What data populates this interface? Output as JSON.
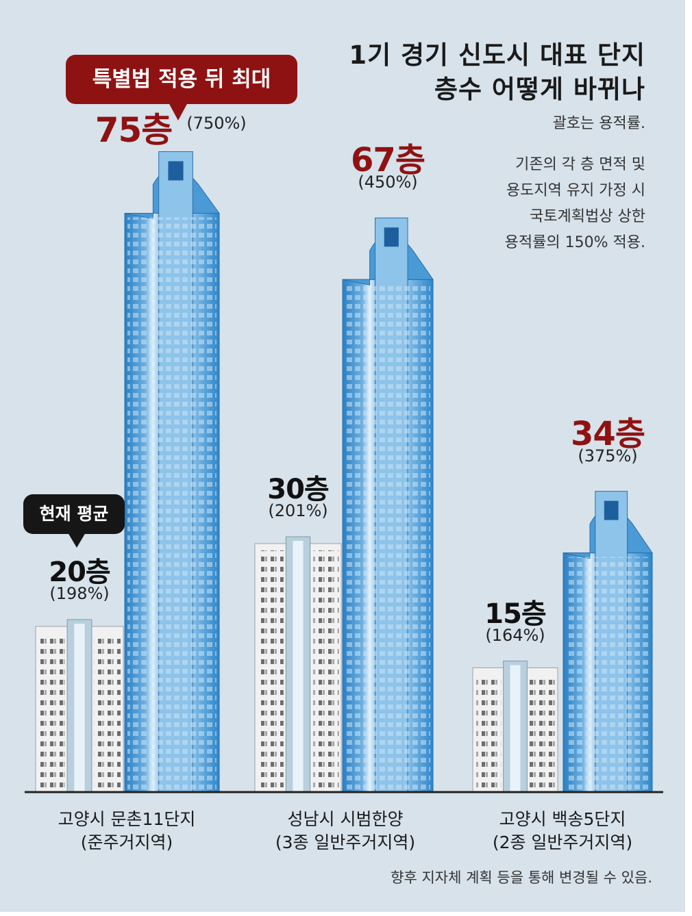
{
  "title_lines": [
    "1기 경기 신도시 대표 단지",
    "층수 어떻게 바뀌나"
  ],
  "subtitle": "괄호는 용적률.",
  "notes": [
    "기존의 각 층 면적 및",
    "용도지역 유지 가정 시",
    "국토계획법상 상한",
    "용적률의 150% 적용."
  ],
  "footnote": "향후 지자체 계획 등을 통해 변경될 수 있음.",
  "callouts": {
    "special_law_max": "특별법 적용 뒤 최대",
    "current_avg": "현재 평균"
  },
  "colors": {
    "background": "#d7e2ea",
    "accent_red": "#8f1212",
    "tower_blue": "#3a8ccb",
    "current_gray": "#f1f1f1"
  },
  "chart_data": {
    "type": "bar",
    "categories": [
      "고양시 문촌11단지\n(준주거지역)",
      "성남시 시범한양\n(3종 일반주거지역)",
      "고양시 백송5단지\n(2종 일반주거지역)"
    ],
    "series": [
      {
        "name": "현재 평균",
        "values": [
          20,
          30,
          15
        ],
        "labels": [
          "20층",
          "30층",
          "15층"
        ],
        "pct_labels": [
          "(198%)",
          "(201%)",
          "(164%)"
        ]
      },
      {
        "name": "특별법 적용 뒤 최대",
        "values": [
          75,
          67,
          34
        ],
        "labels": [
          "75층",
          "67층",
          "34층"
        ],
        "pct_labels": [
          "(750%)",
          "(450%)",
          "(375%)"
        ]
      }
    ],
    "unit": "층",
    "ylim": [
      0,
      80
    ],
    "grid": false
  }
}
